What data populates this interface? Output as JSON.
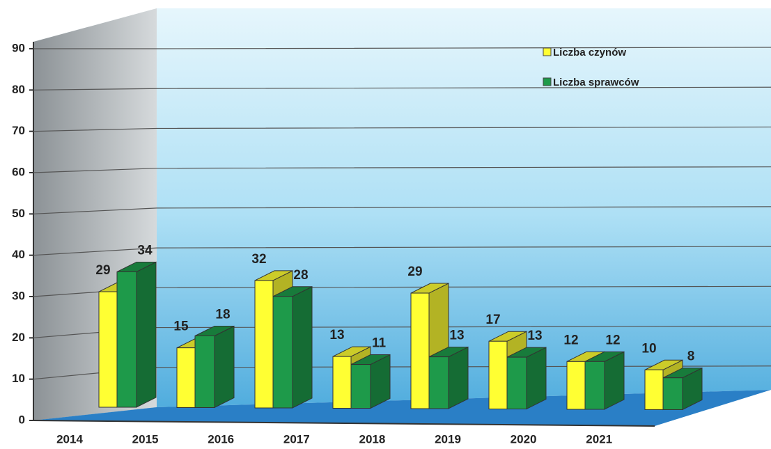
{
  "chart_data": {
    "type": "bar3d",
    "categories": [
      "2014",
      "2015",
      "2016",
      "2017",
      "2018",
      "2019",
      "2020",
      "2021"
    ],
    "series": [
      {
        "name": "Liczba czynów",
        "color": "#ffff33",
        "values": [
          29,
          15,
          32,
          13,
          29,
          17,
          12,
          10
        ]
      },
      {
        "name": "Liczba sprawców",
        "color": "#1e9a4a",
        "values": [
          34,
          18,
          28,
          11,
          13,
          13,
          12,
          8
        ]
      }
    ],
    "ylim": [
      0,
      90
    ],
    "yticks": [
      0,
      10,
      20,
      30,
      40,
      50,
      60,
      70,
      80,
      90
    ],
    "grid": true,
    "legend": "top-right"
  }
}
